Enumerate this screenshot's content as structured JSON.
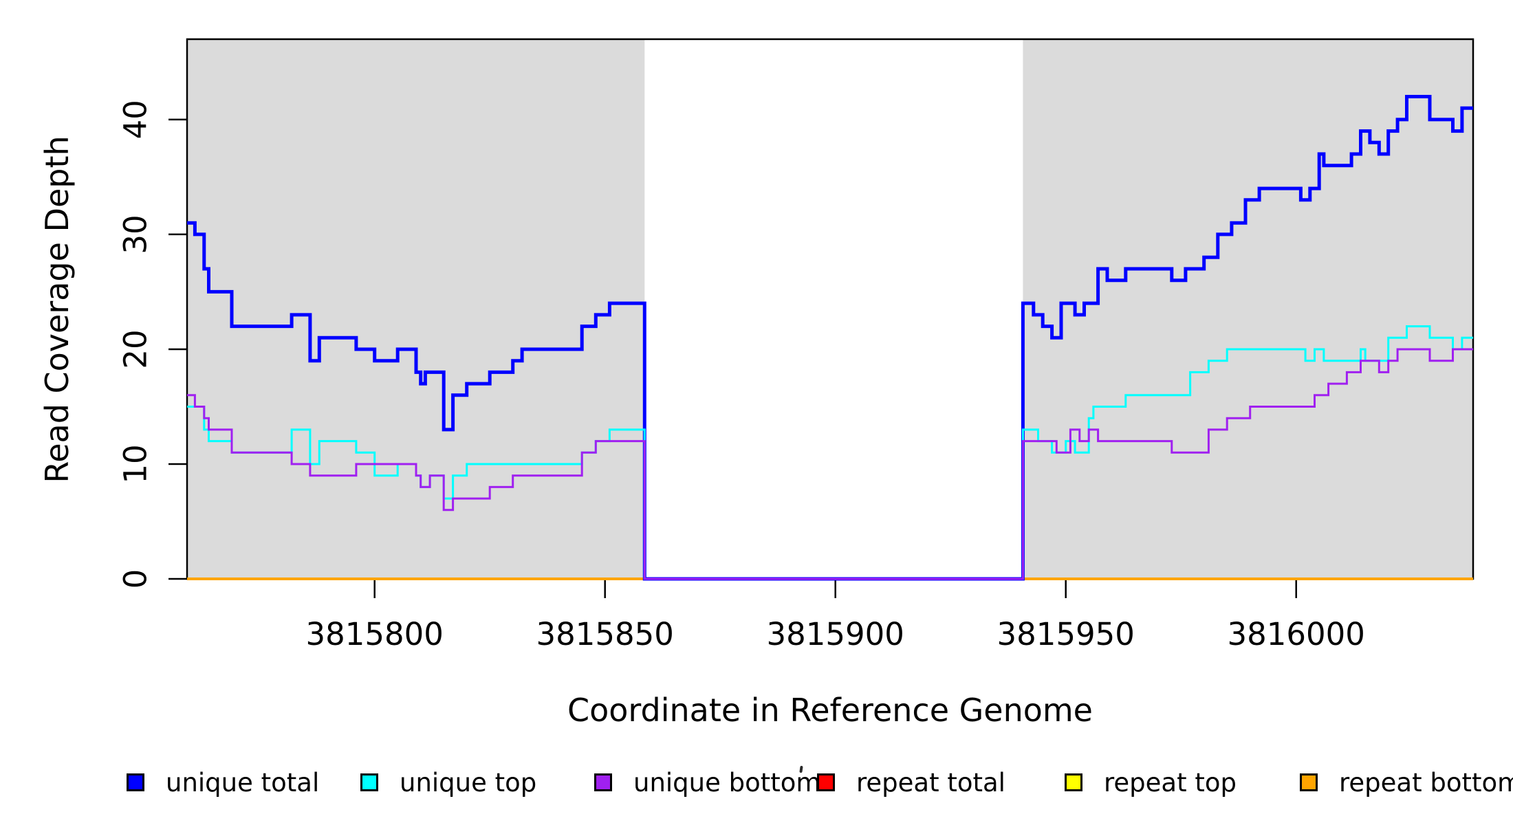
{
  "chart_data": {
    "type": "line",
    "subtype": "step-HV",
    "title": "",
    "xlabel": "Coordinate in Reference Genome",
    "ylabel": "Read Coverage Depth",
    "xlim": [
      3815759.3,
      3816038.4
    ],
    "ylim": [
      0,
      47
    ],
    "grid": false,
    "legend_position": "bottom",
    "x_ticks": [
      3815800,
      3815850,
      3815900,
      3815950,
      3816000
    ],
    "x_tick_labels": [
      "3815800",
      "3815850",
      "3815900",
      "3815950",
      "3816000"
    ],
    "y_ticks": [
      0,
      10,
      20,
      30,
      40
    ],
    "y_tick_labels": [
      "0",
      "10",
      "20",
      "30",
      "40"
    ],
    "shaded_regions": [
      {
        "x0": 3815759.3,
        "x1": 3815858.6,
        "color": "#DBDBDB"
      },
      {
        "x0": 3815940.7,
        "x1": 3816038.4,
        "color": "#DBDBDB"
      }
    ],
    "gap_region": {
      "x0": 3815858.6,
      "x1": 3815940.7,
      "note": "all unique coverage drops to 0"
    },
    "series": [
      {
        "name": "repeat total",
        "color": "#FF0000",
        "line_width": 4,
        "points": [
          [
            3815759.3,
            0
          ],
          [
            3816038.4,
            0
          ]
        ]
      },
      {
        "name": "repeat top",
        "color": "#FFFF00",
        "line_width": 4,
        "points": [
          [
            3815759.3,
            0
          ],
          [
            3816038.4,
            0
          ]
        ]
      },
      {
        "name": "repeat bottom",
        "color": "#FFA500",
        "line_width": 4,
        "points": [
          [
            3815759.3,
            0
          ],
          [
            3816038.4,
            0
          ]
        ]
      },
      {
        "name": "unique total",
        "color": "#0000FF",
        "line_width": 5,
        "points": [
          [
            3815759.3,
            31
          ],
          [
            3815761,
            30
          ],
          [
            3815763,
            27
          ],
          [
            3815764,
            25
          ],
          [
            3815769,
            22
          ],
          [
            3815782,
            23
          ],
          [
            3815786,
            19
          ],
          [
            3815788,
            21
          ],
          [
            3815796,
            20
          ],
          [
            3815800,
            19
          ],
          [
            3815805,
            20
          ],
          [
            3815809,
            18
          ],
          [
            3815810,
            17
          ],
          [
            3815811,
            18
          ],
          [
            3815815,
            13
          ],
          [
            3815817,
            16
          ],
          [
            3815820,
            17
          ],
          [
            3815825,
            18
          ],
          [
            3815830,
            19
          ],
          [
            3815832,
            20
          ],
          [
            3815845,
            22
          ],
          [
            3815848,
            23
          ],
          [
            3815851,
            24
          ],
          [
            3815858.6,
            0
          ],
          [
            3815940.7,
            24
          ],
          [
            3815943,
            23
          ],
          [
            3815945,
            22
          ],
          [
            3815947,
            21
          ],
          [
            3815949,
            24
          ],
          [
            3815952,
            23
          ],
          [
            3815954,
            24
          ],
          [
            3815957,
            27
          ],
          [
            3815959,
            26
          ],
          [
            3815963,
            27
          ],
          [
            3815973,
            26
          ],
          [
            3815976,
            27
          ],
          [
            3815980,
            28
          ],
          [
            3815983,
            30
          ],
          [
            3815986,
            31
          ],
          [
            3815989,
            33
          ],
          [
            3815992,
            34
          ],
          [
            3816001,
            33
          ],
          [
            3816003,
            34
          ],
          [
            3816005,
            37
          ],
          [
            3816006,
            36
          ],
          [
            3816012,
            37
          ],
          [
            3816014,
            39
          ],
          [
            3816016,
            38
          ],
          [
            3816018,
            37
          ],
          [
            3816020,
            39
          ],
          [
            3816022,
            40
          ],
          [
            3816024,
            42
          ],
          [
            3816029,
            40
          ],
          [
            3816034,
            39
          ],
          [
            3816036,
            41
          ],
          [
            3816038.4,
            41
          ]
        ]
      },
      {
        "name": "unique top",
        "color": "#00FFFF",
        "line_width": 3,
        "points": [
          [
            3815759.3,
            15
          ],
          [
            3815763,
            13
          ],
          [
            3815764,
            12
          ],
          [
            3815769,
            11
          ],
          [
            3815782,
            13
          ],
          [
            3815786,
            10
          ],
          [
            3815788,
            12
          ],
          [
            3815796,
            11
          ],
          [
            3815800,
            9
          ],
          [
            3815805,
            10
          ],
          [
            3815809,
            9
          ],
          [
            3815810,
            8
          ],
          [
            3815812,
            9
          ],
          [
            3815815,
            7
          ],
          [
            3815817,
            9
          ],
          [
            3815820,
            10
          ],
          [
            3815845,
            11
          ],
          [
            3815848,
            12
          ],
          [
            3815851,
            13
          ],
          [
            3815858.6,
            0
          ],
          [
            3815940.7,
            13
          ],
          [
            3815944,
            12
          ],
          [
            3815947,
            11
          ],
          [
            3815950,
            12
          ],
          [
            3815952,
            11
          ],
          [
            3815955,
            14
          ],
          [
            3815956,
            15
          ],
          [
            3815963,
            16
          ],
          [
            3815977,
            18
          ],
          [
            3815981,
            19
          ],
          [
            3815985,
            20
          ],
          [
            3816002,
            19
          ],
          [
            3816004,
            20
          ],
          [
            3816006,
            19
          ],
          [
            3816014,
            20
          ],
          [
            3816015,
            19
          ],
          [
            3816020,
            21
          ],
          [
            3816024,
            22
          ],
          [
            3816029,
            21
          ],
          [
            3816034,
            20
          ],
          [
            3816036,
            21
          ],
          [
            3816038.4,
            21
          ]
        ]
      },
      {
        "name": "unique bottom",
        "color": "#A020F0",
        "line_width": 3,
        "points": [
          [
            3815759.3,
            16
          ],
          [
            3815761,
            15
          ],
          [
            3815763,
            14
          ],
          [
            3815764,
            13
          ],
          [
            3815769,
            11
          ],
          [
            3815782,
            10
          ],
          [
            3815786,
            9
          ],
          [
            3815796,
            10
          ],
          [
            3815809,
            9
          ],
          [
            3815810,
            8
          ],
          [
            3815812,
            9
          ],
          [
            3815815,
            6
          ],
          [
            3815817,
            7
          ],
          [
            3815825,
            8
          ],
          [
            3815830,
            9
          ],
          [
            3815845,
            11
          ],
          [
            3815848,
            12
          ],
          [
            3815858.6,
            0
          ],
          [
            3815940.7,
            12
          ],
          [
            3815948,
            11
          ],
          [
            3815951,
            13
          ],
          [
            3815953,
            12
          ],
          [
            3815955,
            13
          ],
          [
            3815957,
            12
          ],
          [
            3815973,
            11
          ],
          [
            3815981,
            13
          ],
          [
            3815985,
            14
          ],
          [
            3815990,
            15
          ],
          [
            3816004,
            16
          ],
          [
            3816007,
            17
          ],
          [
            3816011,
            18
          ],
          [
            3816014,
            19
          ],
          [
            3816018,
            18
          ],
          [
            3816020,
            19
          ],
          [
            3816022,
            20
          ],
          [
            3816029,
            19
          ],
          [
            3816034,
            20
          ],
          [
            3816038.4,
            20
          ]
        ]
      }
    ]
  },
  "legend": {
    "items": [
      {
        "label": "unique total",
        "color": "#0000FF"
      },
      {
        "label": "unique top",
        "color": "#00FFFF"
      },
      {
        "label": "unique bottom",
        "color": "#A020F0"
      },
      {
        "label": "repeat total",
        "color": "#FF0000"
      },
      {
        "label": "repeat top",
        "color": "#FFFF00"
      },
      {
        "label": "repeat bottom",
        "color": "#FFA500"
      }
    ]
  },
  "colors": {
    "background": "#FFFFFF",
    "shaded_region": "#DBDBDB",
    "axis": "#000000",
    "text": "#000000"
  }
}
